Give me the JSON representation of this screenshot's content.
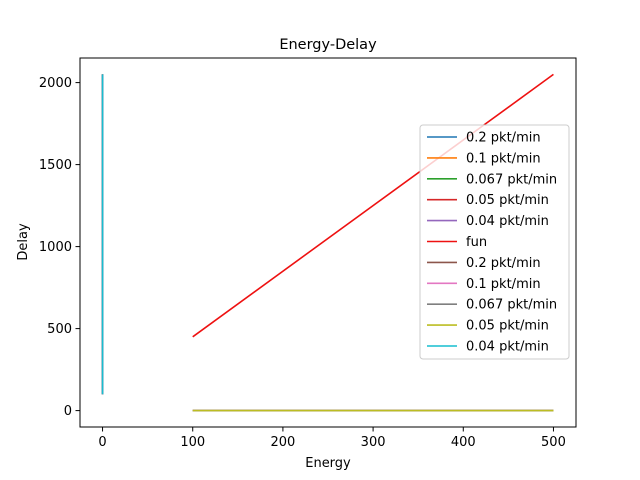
{
  "chart_data": {
    "type": "line",
    "title": "Energy-Delay",
    "xlabel": "Energy",
    "ylabel": "Delay",
    "xlim": [
      -25,
      525
    ],
    "ylim": [
      -100,
      2150
    ],
    "xticks": [
      0,
      100,
      200,
      300,
      400,
      500
    ],
    "yticks": [
      0,
      500,
      1000,
      1500,
      2000
    ],
    "grid": false,
    "legend_position": "right",
    "series": [
      {
        "name": "0.2 pkt/min",
        "color": "#1f77b4",
        "points": [
          [
            0,
            100
          ],
          [
            0,
            2050
          ]
        ]
      },
      {
        "name": "0.1 pkt/min",
        "color": "#ff7f0e",
        "points": [
          [
            0,
            100
          ],
          [
            0,
            2050
          ]
        ]
      },
      {
        "name": "0.067 pkt/min",
        "color": "#2ca02c",
        "points": [
          [
            0,
            100
          ],
          [
            0,
            2050
          ]
        ]
      },
      {
        "name": "0.05 pkt/min",
        "color": "#d62728",
        "points": [
          [
            0,
            100
          ],
          [
            0,
            2050
          ]
        ]
      },
      {
        "name": "0.04 pkt/min",
        "color": "#9467bd",
        "points": [
          [
            0,
            100
          ],
          [
            0,
            2050
          ]
        ]
      },
      {
        "name": "fun",
        "color": "#ee1111",
        "points": [
          [
            100,
            450
          ],
          [
            500,
            2050
          ]
        ]
      },
      {
        "name": "0.2 pkt/min",
        "color": "#8c564b",
        "points": [
          [
            100,
            0
          ],
          [
            500,
            0
          ]
        ]
      },
      {
        "name": "0.1 pkt/min",
        "color": "#e377c2",
        "points": [
          [
            100,
            0
          ],
          [
            500,
            0
          ]
        ]
      },
      {
        "name": "0.067 pkt/min",
        "color": "#7f7f7f",
        "points": [
          [
            100,
            0
          ],
          [
            500,
            0
          ]
        ]
      },
      {
        "name": "0.05 pkt/min",
        "color": "#bcbd22",
        "points": [
          [
            100,
            0
          ],
          [
            500,
            0
          ]
        ]
      },
      {
        "name": "0.04 pkt/min",
        "color": "#17becf",
        "points": [
          [
            0,
            100
          ],
          [
            0,
            2050
          ]
        ]
      }
    ]
  }
}
